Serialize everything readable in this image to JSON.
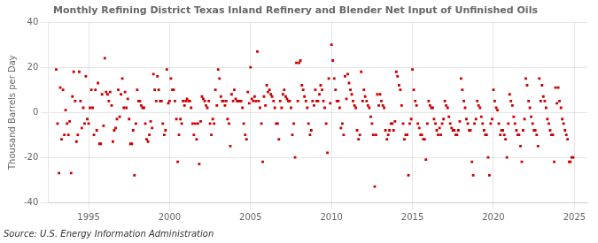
{
  "chart_data": {
    "type": "scatter",
    "title": "Monthly Refining District Texas Inland Refinery and Blender Net Input of Unfinished Oils",
    "ylabel": "Thousand Barrels per Day",
    "source": "Source: U.S. Energy Information Administration",
    "color": "#cc0000",
    "marker": "square",
    "grid": true,
    "xlim": [
      1992.5,
      2025.8
    ],
    "ylim": [
      -40,
      40
    ],
    "xticks": [
      1995,
      2000,
      2005,
      2010,
      2015,
      2020,
      2025
    ],
    "yticks": [
      -40,
      -20,
      0,
      20,
      40
    ],
    "x": [
      1993.0,
      1993.08,
      1993.17,
      1993.25,
      1993.33,
      1993.42,
      1993.5,
      1993.58,
      1993.67,
      1993.75,
      1993.83,
      1993.92,
      1994.0,
      1994.08,
      1994.17,
      1994.25,
      1994.33,
      1994.42,
      1994.5,
      1994.58,
      1994.67,
      1994.75,
      1994.83,
      1994.92,
      1995.0,
      1995.08,
      1995.17,
      1995.25,
      1995.33,
      1995.42,
      1995.5,
      1995.58,
      1995.67,
      1995.75,
      1995.83,
      1995.92,
      1996.0,
      1996.08,
      1996.17,
      1996.25,
      1996.33,
      1996.42,
      1996.5,
      1996.58,
      1996.67,
      1996.75,
      1996.83,
      1996.92,
      1997.0,
      1997.08,
      1997.17,
      1997.25,
      1997.33,
      1997.42,
      1997.5,
      1997.58,
      1997.67,
      1997.75,
      1997.83,
      1997.92,
      1998.0,
      1998.08,
      1998.17,
      1998.25,
      1998.33,
      1998.42,
      1998.5,
      1998.58,
      1998.67,
      1998.75,
      1998.83,
      1998.92,
      1999.0,
      1999.08,
      1999.17,
      1999.25,
      1999.33,
      1999.42,
      1999.5,
      1999.58,
      1999.67,
      1999.75,
      1999.83,
      1999.92,
      2000.0,
      2000.08,
      2000.17,
      2000.25,
      2000.33,
      2000.42,
      2000.5,
      2000.58,
      2000.67,
      2000.75,
      2000.83,
      2000.92,
      2001.0,
      2001.08,
      2001.17,
      2001.25,
      2001.33,
      2001.42,
      2001.5,
      2001.58,
      2001.67,
      2001.75,
      2001.83,
      2001.92,
      2002.0,
      2002.08,
      2002.17,
      2002.25,
      2002.33,
      2002.42,
      2002.5,
      2002.58,
      2002.67,
      2002.75,
      2002.83,
      2002.92,
      2003.0,
      2003.08,
      2003.17,
      2003.25,
      2003.33,
      2003.42,
      2003.5,
      2003.58,
      2003.67,
      2003.75,
      2003.83,
      2003.92,
      2004.0,
      2004.08,
      2004.17,
      2004.25,
      2004.33,
      2004.42,
      2004.5,
      2004.58,
      2004.67,
      2004.75,
      2004.83,
      2004.92,
      2005.0,
      2005.08,
      2005.17,
      2005.25,
      2005.33,
      2005.42,
      2005.5,
      2005.58,
      2005.67,
      2005.75,
      2005.83,
      2005.92,
      2006.0,
      2006.08,
      2006.17,
      2006.25,
      2006.33,
      2006.42,
      2006.5,
      2006.58,
      2006.67,
      2006.75,
      2006.83,
      2006.92,
      2007.0,
      2007.08,
      2007.17,
      2007.25,
      2007.33,
      2007.42,
      2007.5,
      2007.58,
      2007.67,
      2007.75,
      2007.83,
      2007.92,
      2008.0,
      2008.08,
      2008.17,
      2008.25,
      2008.33,
      2008.42,
      2008.5,
      2008.58,
      2008.67,
      2008.75,
      2008.83,
      2008.92,
      2009.0,
      2009.08,
      2009.17,
      2009.25,
      2009.33,
      2009.42,
      2009.5,
      2009.58,
      2009.67,
      2009.75,
      2009.83,
      2009.92,
      2010.0,
      2010.08,
      2010.17,
      2010.25,
      2010.33,
      2010.42,
      2010.5,
      2010.58,
      2010.67,
      2010.75,
      2010.83,
      2010.92,
      2011.0,
      2011.08,
      2011.17,
      2011.25,
      2011.33,
      2011.42,
      2011.5,
      2011.58,
      2011.67,
      2011.75,
      2011.83,
      2011.92,
      2012.0,
      2012.08,
      2012.17,
      2012.25,
      2012.33,
      2012.42,
      2012.5,
      2012.58,
      2012.67,
      2012.75,
      2012.83,
      2012.92,
      2013.0,
      2013.08,
      2013.17,
      2013.25,
      2013.33,
      2013.42,
      2013.5,
      2013.58,
      2013.67,
      2013.75,
      2013.83,
      2013.92,
      2014.0,
      2014.08,
      2014.17,
      2014.25,
      2014.33,
      2014.42,
      2014.5,
      2014.58,
      2014.67,
      2014.75,
      2014.83,
      2014.92,
      2015.0,
      2015.08,
      2015.17,
      2015.25,
      2015.33,
      2015.42,
      2015.5,
      2015.58,
      2015.67,
      2015.75,
      2015.83,
      2015.92,
      2016.0,
      2016.08,
      2016.17,
      2016.25,
      2016.33,
      2016.42,
      2016.5,
      2016.58,
      2016.67,
      2016.75,
      2016.83,
      2016.92,
      2017.0,
      2017.08,
      2017.17,
      2017.25,
      2017.33,
      2017.42,
      2017.5,
      2017.58,
      2017.67,
      2017.75,
      2017.83,
      2017.92,
      2018.0,
      2018.08,
      2018.17,
      2018.25,
      2018.33,
      2018.42,
      2018.5,
      2018.58,
      2018.67,
      2018.75,
      2018.83,
      2018.92,
      2019.0,
      2019.08,
      2019.17,
      2019.25,
      2019.33,
      2019.42,
      2019.5,
      2019.58,
      2019.67,
      2019.75,
      2019.83,
      2019.92,
      2020.0,
      2020.08,
      2020.17,
      2020.25,
      2020.33,
      2020.42,
      2020.5,
      2020.58,
      2020.67,
      2020.75,
      2020.83,
      2020.92,
      2021.0,
      2021.08,
      2021.17,
      2021.25,
      2021.33,
      2021.42,
      2021.5,
      2021.58,
      2021.67,
      2021.75,
      2021.83,
      2021.92,
      2022.0,
      2022.08,
      2022.17,
      2022.25,
      2022.33,
      2022.42,
      2022.5,
      2022.58,
      2022.67,
      2022.75,
      2022.83,
      2022.92,
      2023.0,
      2023.08,
      2023.17,
      2023.25,
      2023.33,
      2023.42,
      2023.5,
      2023.58,
      2023.67,
      2023.75,
      2023.83,
      2023.92,
      2024.0,
      2024.08,
      2024.17,
      2024.25,
      2024.33,
      2024.42,
      2024.5,
      2024.58,
      2024.67,
      2024.75,
      2024.83,
      2024.92
    ],
    "values": [
      19.0,
      -5.0,
      -27.0,
      11.0,
      -12.0,
      10.0,
      -10.0,
      1.0,
      -5.0,
      -10.0,
      -4.0,
      -27.0,
      7.0,
      18.0,
      5.0,
      -13.0,
      -10.0,
      18.0,
      5.0,
      -7.0,
      2.0,
      -5.0,
      16.0,
      -3.0,
      -5.0,
      2.0,
      10.0,
      2.0,
      -10.0,
      10.0,
      -8.0,
      13.0,
      -14.0,
      -14.0,
      8.0,
      -6.0,
      24.0,
      9.0,
      8.0,
      5.0,
      9.0,
      3.0,
      -13.0,
      -8.0,
      -7.0,
      -3.0,
      10.0,
      -2.0,
      8.0,
      15.0,
      2.0,
      9.0,
      2.0,
      6.0,
      -3.0,
      -14.0,
      -14.0,
      -8.0,
      -28.0,
      -5.0,
      10.0,
      5.0,
      5.0,
      3.0,
      2.0,
      2.0,
      -5.0,
      -12.0,
      -13.0,
      -10.0,
      -4.0,
      -7.0,
      17.0,
      10.0,
      5.0,
      16.0,
      10.0,
      5.0,
      5.0,
      -5.0,
      -10.0,
      -8.0,
      19.0,
      4.0,
      5.0,
      15.0,
      10.0,
      10.0,
      5.0,
      -3.0,
      -22.0,
      -10.0,
      -3.0,
      -5.0,
      5.0,
      3.0,
      5.0,
      6.0,
      5.0,
      5.0,
      2.0,
      -5.0,
      -10.0,
      -5.0,
      -12.0,
      -5.0,
      -23.0,
      -4.0,
      7.0,
      6.0,
      5.0,
      3.0,
      2.0,
      5.0,
      -5.0,
      -10.0,
      -3.0,
      -5.0,
      10.0,
      3.0,
      19.0,
      15.0,
      7.0,
      5.0,
      5.0,
      3.0,
      5.0,
      -3.0,
      -5.0,
      -15.0,
      8.0,
      5.0,
      10.0,
      6.0,
      5.0,
      5.0,
      5.0,
      5.0,
      2.0,
      -5.0,
      -10.0,
      -12.0,
      9.0,
      4.0,
      20.0,
      6.0,
      5.0,
      7.0,
      5.0,
      27.0,
      5.0,
      2.0,
      -5.0,
      -22.0,
      7.0,
      3.0,
      12.0,
      9.0,
      10.0,
      8.0,
      7.0,
      5.0,
      2.0,
      -5.0,
      -5.0,
      -12.0,
      5.0,
      2.0,
      8.0,
      10.0,
      7.0,
      6.0,
      5.0,
      5.0,
      2.0,
      -10.0,
      -5.0,
      -20.0,
      22.0,
      5.0,
      22.0,
      23.0,
      12.0,
      10.0,
      7.0,
      5.0,
      2.0,
      -5.0,
      -10.0,
      -8.0,
      5.0,
      3.0,
      10.0,
      5.0,
      5.0,
      8.0,
      12.0,
      10.0,
      5.0,
      2.0,
      -5.0,
      -18.0,
      15.0,
      4.0,
      30.0,
      23.0,
      15.0,
      10.0,
      5.0,
      5.0,
      2.0,
      -7.0,
      -5.0,
      -10.0,
      16.0,
      6.0,
      17.0,
      13.0,
      10.0,
      8.0,
      5.0,
      3.0,
      2.0,
      -8.0,
      -12.0,
      -10.0,
      18.0,
      5.0,
      10.0,
      7.0,
      5.0,
      3.0,
      2.0,
      -2.0,
      -5.0,
      -10.0,
      -33.0,
      -10.0,
      8.0,
      3.0,
      8.0,
      5.0,
      3.0,
      2.0,
      -8.0,
      -12.0,
      -10.0,
      -8.0,
      -5.0,
      -5.0,
      -8.0,
      -4.0,
      18.0,
      16.0,
      12.0,
      10.0,
      3.0,
      -5.0,
      -12.0,
      -10.0,
      -10.0,
      -28.0,
      -5.0,
      -3.0,
      19.0,
      10.0,
      5.0,
      3.0,
      -5.0,
      -7.0,
      -10.0,
      -10.0,
      -12.0,
      -12.0,
      -21.0,
      -5.0,
      5.0,
      3.0,
      2.0,
      2.0,
      -3.0,
      -5.0,
      -8.0,
      -10.0,
      -7.0,
      -10.0,
      -5.0,
      -3.0,
      5.0,
      3.0,
      2.0,
      -2.0,
      -5.0,
      -7.0,
      -8.0,
      -8.0,
      -10.0,
      -10.0,
      -8.0,
      -4.0,
      15.0,
      10.0,
      5.0,
      2.0,
      -3.0,
      -5.0,
      -8.0,
      -8.0,
      -22.0,
      -28.0,
      -5.0,
      -3.0,
      5.0,
      3.0,
      2.0,
      -2.0,
      -5.0,
      -8.0,
      -10.0,
      -10.0,
      -20.0,
      -28.0,
      -5.0,
      -3.0,
      10.0,
      5.0,
      2.0,
      1.0,
      -5.0,
      -10.0,
      -8.0,
      -8.0,
      -10.0,
      -12.0,
      -20.0,
      -5.0,
      8.0,
      5.0,
      3.0,
      -2.0,
      -5.0,
      -8.0,
      -10.0,
      -10.0,
      -15.0,
      -22.0,
      -8.0,
      -3.0,
      15.0,
      12.0,
      5.0,
      2.0,
      -2.0,
      -5.0,
      -8.0,
      -8.0,
      -10.0,
      -15.0,
      15.0,
      5.0,
      12.0,
      7.0,
      5.0,
      2.0,
      -3.0,
      -5.0,
      -8.0,
      -10.0,
      -10.0,
      -22.0,
      11.0,
      4.0,
      11.0,
      5.0,
      2.0,
      -3.0,
      -5.0,
      -8.0,
      -10.0,
      -12.0,
      -22.0,
      -22.0,
      -20.0,
      -20.0
    ]
  }
}
